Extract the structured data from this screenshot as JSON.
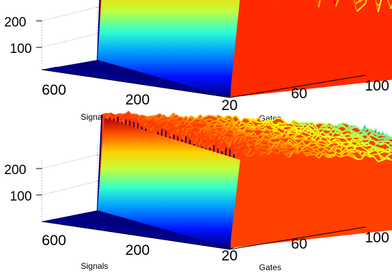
{
  "chart_data": [
    {
      "type": "surface",
      "xlabel": "Gates",
      "ylabel": "Signals",
      "x_ticks": [
        "20",
        "60",
        "100"
      ],
      "y_ticks": [
        "600",
        "200"
      ],
      "z_ticks": [
        "100",
        "200"
      ],
      "xlim": [
        0,
        100
      ],
      "ylim": [
        0,
        800
      ],
      "zlim": [
        0,
        250
      ],
      "grid": true,
      "colormap": "jet",
      "gate_onset": 20,
      "plateau_level": 200,
      "plateau_far_level": 100,
      "noise": "high"
    },
    {
      "type": "surface",
      "xlabel": "Gates",
      "ylabel": "Signals",
      "x_ticks": [
        "20",
        "60",
        "100"
      ],
      "y_ticks": [
        "600",
        "200"
      ],
      "z_ticks": [
        "100",
        "200"
      ],
      "xlim": [
        0,
        100
      ],
      "ylim": [
        0,
        800
      ],
      "zlim": [
        0,
        250
      ],
      "grid": true,
      "colormap": "jet",
      "gate_onset": 20,
      "plateau_level": 175,
      "plateau_far_level": 100,
      "noise": "low"
    }
  ]
}
